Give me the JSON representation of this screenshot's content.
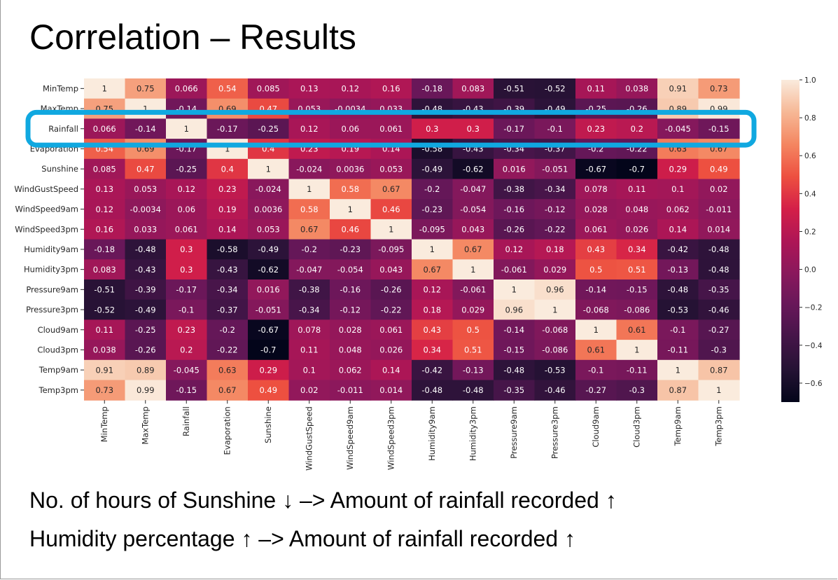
{
  "slide": {
    "title": "Correlation – Results",
    "notes": [
      "No. of hours of Sunshine ↓ –> Amount of rainfall recorded ↑",
      "Humidity percentage ↑ –> Amount of rainfall recorded ↑"
    ]
  },
  "chart_data": {
    "type": "heatmap",
    "variables": [
      "MinTemp",
      "MaxTemp",
      "Rainfall",
      "Evaporation",
      "Sunshine",
      "WindGustSpeed",
      "WindSpeed9am",
      "WindSpeed3pm",
      "Humidity9am",
      "Humidity3pm",
      "Pressure9am",
      "Pressure3pm",
      "Cloud9am",
      "Cloud3pm",
      "Temp9am",
      "Temp3pm"
    ],
    "cell_labels": [
      [
        "1",
        "0.75",
        "0.066",
        "0.54",
        "0.085",
        "0.13",
        "0.12",
        "0.16",
        "-0.18",
        "0.083",
        "-0.51",
        "-0.52",
        "0.11",
        "0.038",
        "0.91",
        "0.73"
      ],
      [
        "0.75",
        "1",
        "-0.14",
        "0.69",
        "0.47",
        "0.053",
        "-0.0034",
        "0.033",
        "-0.48",
        "-0.43",
        "-0.39",
        "-0.49",
        "-0.25",
        "-0.26",
        "0.89",
        "0.99"
      ],
      [
        "0.066",
        "-0.14",
        "1",
        "-0.17",
        "-0.25",
        "0.12",
        "0.06",
        "0.061",
        "0.3",
        "0.3",
        "-0.17",
        "-0.1",
        "0.23",
        "0.2",
        "-0.045",
        "-0.15"
      ],
      [
        "0.54",
        "0.69",
        "-0.17",
        "1",
        "0.4",
        "0.23",
        "0.19",
        "0.14",
        "-0.58",
        "-0.43",
        "-0.34",
        "-0.37",
        "-0.2",
        "-0.22",
        "0.63",
        "0.67"
      ],
      [
        "0.085",
        "0.47",
        "-0.25",
        "0.4",
        "1",
        "-0.024",
        "0.0036",
        "0.053",
        "-0.49",
        "-0.62",
        "0.016",
        "-0.051",
        "-0.67",
        "-0.7",
        "0.29",
        "0.49"
      ],
      [
        "0.13",
        "0.053",
        "0.12",
        "0.23",
        "-0.024",
        "1",
        "0.58",
        "0.67",
        "-0.2",
        "-0.047",
        "-0.38",
        "-0.34",
        "0.078",
        "0.11",
        "0.1",
        "0.02"
      ],
      [
        "0.12",
        "-0.0034",
        "0.06",
        "0.19",
        "0.0036",
        "0.58",
        "1",
        "0.46",
        "-0.23",
        "-0.054",
        "-0.16",
        "-0.12",
        "0.028",
        "0.048",
        "0.062",
        "-0.011"
      ],
      [
        "0.16",
        "0.033",
        "0.061",
        "0.14",
        "0.053",
        "0.67",
        "0.46",
        "1",
        "-0.095",
        "0.043",
        "-0.26",
        "-0.22",
        "0.061",
        "0.026",
        "0.14",
        "0.014"
      ],
      [
        "-0.18",
        "-0.48",
        "0.3",
        "-0.58",
        "-0.49",
        "-0.2",
        "-0.23",
        "-0.095",
        "1",
        "0.67",
        "0.12",
        "0.18",
        "0.43",
        "0.34",
        "-0.42",
        "-0.48"
      ],
      [
        "0.083",
        "-0.43",
        "0.3",
        "-0.43",
        "-0.62",
        "-0.047",
        "-0.054",
        "0.043",
        "0.67",
        "1",
        "-0.061",
        "0.029",
        "0.5",
        "0.51",
        "-0.13",
        "-0.48"
      ],
      [
        "-0.51",
        "-0.39",
        "-0.17",
        "-0.34",
        "0.016",
        "-0.38",
        "-0.16",
        "-0.26",
        "0.12",
        "-0.061",
        "1",
        "0.96",
        "-0.14",
        "-0.15",
        "-0.48",
        "-0.35"
      ],
      [
        "-0.52",
        "-0.49",
        "-0.1",
        "-0.37",
        "-0.051",
        "-0.34",
        "-0.12",
        "-0.22",
        "0.18",
        "0.029",
        "0.96",
        "1",
        "-0.068",
        "-0.086",
        "-0.53",
        "-0.46"
      ],
      [
        "0.11",
        "-0.25",
        "0.23",
        "-0.2",
        "-0.67",
        "0.078",
        "0.028",
        "0.061",
        "0.43",
        "0.5",
        "-0.14",
        "-0.068",
        "1",
        "0.61",
        "-0.1",
        "-0.27"
      ],
      [
        "0.038",
        "-0.26",
        "0.2",
        "-0.22",
        "-0.7",
        "0.11",
        "0.048",
        "0.026",
        "0.34",
        "0.51",
        "-0.15",
        "-0.086",
        "0.61",
        "1",
        "-0.11",
        "-0.3"
      ],
      [
        "0.91",
        "0.89",
        "-0.045",
        "0.63",
        "0.29",
        "0.1",
        "0.062",
        "0.14",
        "-0.42",
        "-0.13",
        "-0.48",
        "-0.53",
        "-0.1",
        "-0.11",
        "1",
        "0.87"
      ],
      [
        "0.73",
        "0.99",
        "-0.15",
        "0.67",
        "0.49",
        "0.02",
        "-0.011",
        "0.014",
        "-0.48",
        "-0.48",
        "-0.35",
        "-0.46",
        "-0.27",
        "-0.3",
        "0.87",
        "1"
      ]
    ],
    "color_range": [
      -0.7,
      1.0
    ],
    "colormap": "rocket",
    "colorbar_ticks": [
      "1.0",
      "0.8",
      "0.6",
      "0.4",
      "0.2",
      "0.0",
      "−0.2",
      "−0.4",
      "−0.6"
    ],
    "colorbar_values": [
      1.0,
      0.8,
      0.6,
      0.4,
      0.2,
      0.0,
      -0.2,
      -0.4,
      -0.6
    ],
    "highlighted_row": "Rainfall",
    "highlight_color": "#10a8e0"
  }
}
